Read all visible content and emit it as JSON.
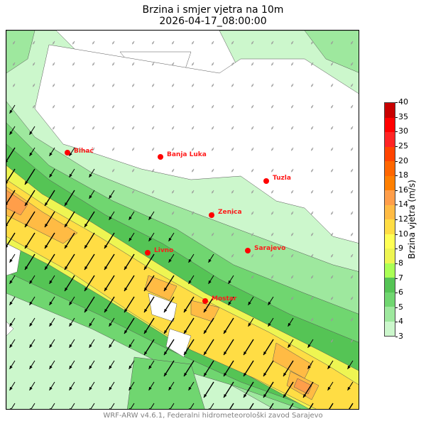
{
  "title": "Brzina i smjer vjetra na 10m",
  "datetime": "2026-04-17_08:00:00",
  "footer": "WRF-ARW v4.6.1, Federalni hidrometeorološki zavod Sarajevo",
  "colorbar": {
    "label": "Brzina vjetra (m/s)",
    "ticks": [
      "3",
      "4",
      "5",
      "6",
      "7",
      "8",
      "9",
      "10",
      "12",
      "14",
      "16",
      "18",
      "20",
      "25",
      "30",
      "35",
      "40"
    ],
    "colors": [
      "#ccf7cc",
      "#9ee89e",
      "#70d670",
      "#55c455",
      "#aaff55",
      "#eef552",
      "#ffff55",
      "#ffdd44",
      "#ffbb44",
      "#ff9e4a",
      "#ff7f00",
      "#ff6600",
      "#ff4400",
      "#ff2424",
      "#ff0000",
      "#c80000"
    ]
  },
  "cities": [
    {
      "name": "Bihać"
    },
    {
      "name": "Banja Luka"
    },
    {
      "name": "Tuzla"
    },
    {
      "name": "Zenica"
    },
    {
      "name": "Livno"
    },
    {
      "name": "Sarajevo"
    },
    {
      "name": "Mostar"
    }
  ],
  "wind_direction": "north-east (arrows point south-west)"
}
